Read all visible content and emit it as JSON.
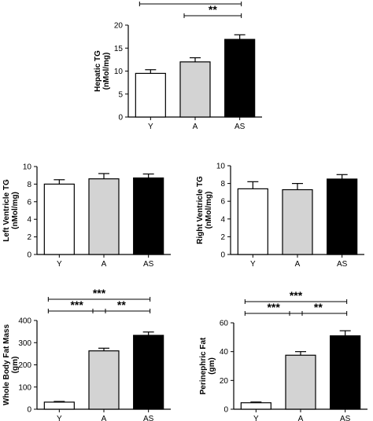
{
  "chart_data": [
    {
      "type": "bar",
      "ylabel": "Hepatic TG\n(nMol/mg)",
      "categories": [
        "Y",
        "A",
        "AS"
      ],
      "values": [
        9.5,
        12.0,
        16.9
      ],
      "errors": [
        0.8,
        0.9,
        1.0
      ],
      "ylim": [
        0,
        20
      ],
      "yticks": [
        0,
        5,
        10,
        15,
        20
      ],
      "colors": [
        "#ffffff",
        "#d3d3d3",
        "#000000"
      ],
      "significance": [
        {
          "from": 0,
          "to": 2,
          "label": "***",
          "level": 1
        },
        {
          "from": 1,
          "to": 2,
          "label": "**",
          "level": 0
        }
      ]
    },
    {
      "type": "bar",
      "ylabel": "Left Ventricle TG\n(nMol/mg)",
      "categories": [
        "Y",
        "A",
        "AS"
      ],
      "values": [
        8.0,
        8.6,
        8.7
      ],
      "errors": [
        0.5,
        0.6,
        0.45
      ],
      "ylim": [
        0,
        10
      ],
      "yticks": [
        0,
        2,
        4,
        6,
        8,
        10
      ],
      "colors": [
        "#ffffff",
        "#d3d3d3",
        "#000000"
      ],
      "significance": []
    },
    {
      "type": "bar",
      "ylabel": "Right Ventricle TG\n(nMol/mg)",
      "categories": [
        "Y",
        "A",
        "AS"
      ],
      "values": [
        7.4,
        7.3,
        8.5
      ],
      "errors": [
        0.8,
        0.7,
        0.5
      ],
      "ylim": [
        0,
        10
      ],
      "yticks": [
        0,
        2,
        4,
        6,
        8,
        10
      ],
      "colors": [
        "#ffffff",
        "#d3d3d3",
        "#000000"
      ],
      "significance": []
    },
    {
      "type": "bar",
      "ylabel": "Whole Body Fat Mass\n(gm)",
      "categories": [
        "Y",
        "A",
        "AS"
      ],
      "values": [
        32,
        263,
        333
      ],
      "errors": [
        3,
        12,
        15
      ],
      "ylim": [
        0,
        400
      ],
      "yticks": [
        0,
        100,
        200,
        300,
        400
      ],
      "colors": [
        "#ffffff",
        "#d3d3d3",
        "#000000"
      ],
      "significance": [
        {
          "from": 0,
          "to": 2,
          "label": "***",
          "level": 1
        },
        {
          "from": 0,
          "to": 1,
          "label": "***",
          "level": 0
        },
        {
          "from": 1,
          "to": 2,
          "label": "**",
          "level": 0
        }
      ]
    },
    {
      "type": "bar",
      "ylabel": "Perinephric Fat\n(gm)",
      "categories": [
        "Y",
        "A",
        "AS"
      ],
      "values": [
        4.5,
        37.5,
        51
      ],
      "errors": [
        0.5,
        2.5,
        3.5
      ],
      "ylim": [
        0,
        60
      ],
      "yticks": [
        0,
        20,
        40,
        60
      ],
      "colors": [
        "#ffffff",
        "#d3d3d3",
        "#000000"
      ],
      "significance": [
        {
          "from": 0,
          "to": 2,
          "label": "***",
          "level": 1
        },
        {
          "from": 0,
          "to": 1,
          "label": "***",
          "level": 0
        },
        {
          "from": 1,
          "to": 2,
          "label": "**",
          "level": 0
        }
      ]
    }
  ]
}
